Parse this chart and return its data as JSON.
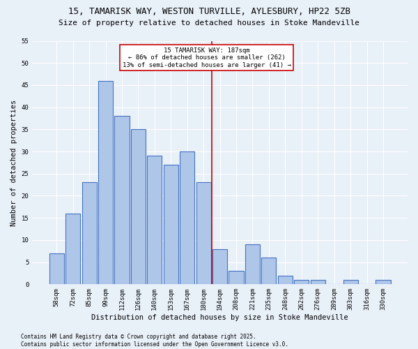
{
  "title1": "15, TAMARISK WAY, WESTON TURVILLE, AYLESBURY, HP22 5ZB",
  "title2": "Size of property relative to detached houses in Stoke Mandeville",
  "xlabel": "Distribution of detached houses by size in Stoke Mandeville",
  "ylabel": "Number of detached properties",
  "footnote1": "Contains HM Land Registry data © Crown copyright and database right 2025.",
  "footnote2": "Contains public sector information licensed under the Open Government Licence v3.0.",
  "bar_labels": [
    "58sqm",
    "72sqm",
    "85sqm",
    "99sqm",
    "112sqm",
    "126sqm",
    "140sqm",
    "153sqm",
    "167sqm",
    "180sqm",
    "194sqm",
    "208sqm",
    "221sqm",
    "235sqm",
    "248sqm",
    "262sqm",
    "276sqm",
    "289sqm",
    "303sqm",
    "316sqm",
    "330sqm"
  ],
  "bar_values": [
    7,
    16,
    23,
    46,
    38,
    35,
    29,
    27,
    30,
    23,
    8,
    3,
    9,
    6,
    2,
    1,
    1,
    0,
    1,
    0,
    1
  ],
  "bar_color": "#aec6e8",
  "bar_edge_color": "#4472c4",
  "background_color": "#e8f0f8",
  "vline_x_index": 9.5,
  "vline_color": "#cc0000",
  "annotation_title": "15 TAMARISK WAY: 187sqm",
  "annotation_line1": "← 86% of detached houses are smaller (262)",
  "annotation_line2": "13% of semi-detached houses are larger (41) →",
  "annotation_box_color": "#cc0000",
  "ylim": [
    0,
    55
  ],
  "yticks": [
    0,
    5,
    10,
    15,
    20,
    25,
    30,
    35,
    40,
    45,
    50,
    55
  ],
  "grid_color": "#ffffff",
  "title1_fontsize": 9,
  "title2_fontsize": 8,
  "xlabel_fontsize": 7.5,
  "ylabel_fontsize": 7.5,
  "tick_fontsize": 6.5,
  "annotation_fontsize": 6.5,
  "footnote_fontsize": 5.5
}
